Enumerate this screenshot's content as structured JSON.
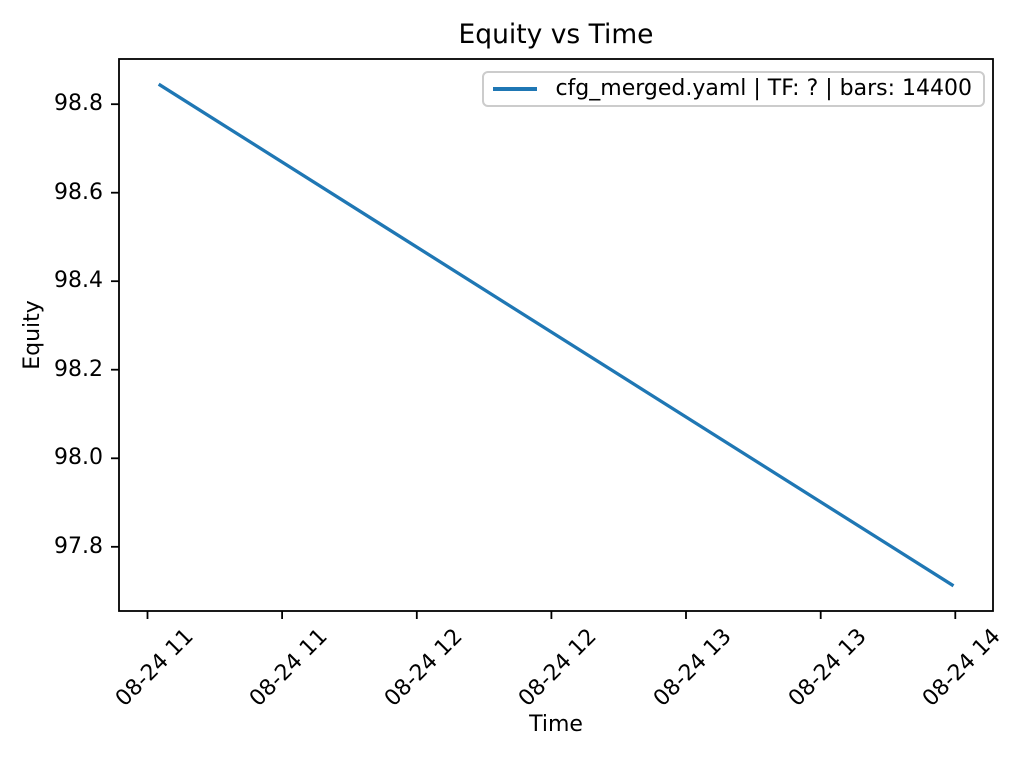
{
  "chart_data": {
    "type": "line",
    "title": "Equity vs Time",
    "xlabel": "Time",
    "ylabel": "Equity",
    "grid": false,
    "legend_position": "upper right",
    "xlim": [
      -6.35,
      188.4
    ],
    "ylim": [
      97.655,
      98.902
    ],
    "x_ticks": [
      {
        "x": 0,
        "label": "08-24 11"
      },
      {
        "x": 30,
        "label": "08-24 11"
      },
      {
        "x": 60,
        "label": "08-24 12"
      },
      {
        "x": 90,
        "label": "08-24 12"
      },
      {
        "x": 120,
        "label": "08-24 13"
      },
      {
        "x": 150,
        "label": "08-24 13"
      },
      {
        "x": 180,
        "label": "08-24 14"
      }
    ],
    "y_ticks": [
      {
        "y": 98.8,
        "label": "98.8"
      },
      {
        "y": 98.6,
        "label": "98.6"
      },
      {
        "y": 98.4,
        "label": "98.4"
      },
      {
        "y": 98.2,
        "label": "98.2"
      },
      {
        "y": 98.0,
        "label": "98.0"
      },
      {
        "y": 97.8,
        "label": "97.8"
      }
    ],
    "series": [
      {
        "name": "cfg_merged.yaml | TF: ? | bars: 14400",
        "color": "#1f77b4",
        "x": [
          2.5,
          179.6
        ],
        "y": [
          98.845,
          97.712
        ]
      }
    ]
  },
  "colors": {
    "axis": "#000000",
    "legend_border": "#cccccc",
    "background": "#ffffff"
  }
}
